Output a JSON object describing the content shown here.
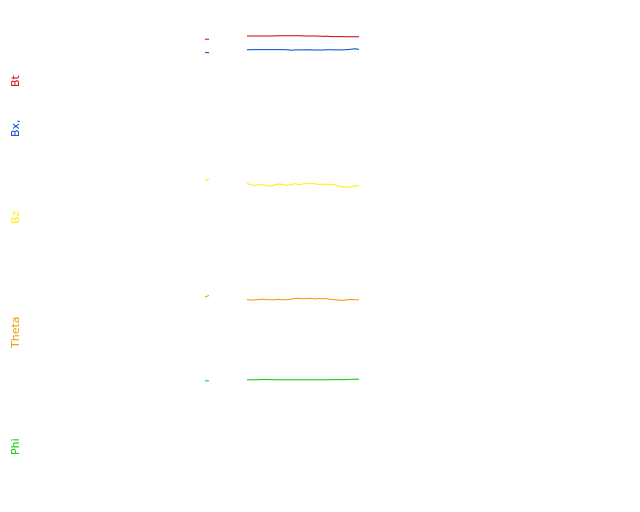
{
  "colors": {
    "bt": "#cc0000",
    "bx": "#0044cc",
    "bz": "#ffee00",
    "theta": "#ee9900",
    "phi": "#00cc00"
  },
  "labels": {
    "bt": "Bt",
    "bx": "Bx,",
    "bz": "Bz",
    "theta": "Theta",
    "phi": "Phi"
  },
  "chart_data": {
    "type": "line",
    "title": "",
    "xlabel": "",
    "axes_shown": false,
    "grid": false,
    "x": [
      0,
      2,
      4,
      6,
      8,
      10,
      12,
      14,
      16,
      18,
      20,
      22,
      24,
      26,
      28,
      30,
      32,
      34,
      36,
      38,
      40,
      42,
      44,
      46,
      48,
      50,
      52,
      54,
      56
    ],
    "series": [
      {
        "key": "bt",
        "values": [
          4,
          4,
          4,
          4,
          4,
          4,
          4,
          4.1,
          4.2,
          4.2,
          4.2,
          4.2,
          4.2,
          4.2,
          4.1,
          4,
          4,
          4,
          3.9,
          3.6,
          3.9,
          3.4,
          3.4,
          3.4,
          3.4,
          3.3,
          3.3,
          3.3,
          3.3
        ],
        "isolated": 0.8
      },
      {
        "key": "bx",
        "values": [
          3.2,
          3.3,
          3.4,
          3.4,
          3.4,
          3.4,
          3.4,
          3.4,
          3.4,
          3.4,
          3.2,
          2.8,
          3.1,
          3.1,
          3.1,
          3.2,
          3.1,
          3,
          3,
          3,
          3.2,
          3.2,
          3.1,
          3.1,
          3.1,
          3.4,
          3.8,
          4.2,
          3.6
        ],
        "isolated": 0.4
      },
      {
        "key": "bz",
        "values": [
          4.2,
          3.2,
          2.9,
          3.4,
          3.2,
          2.8,
          2.4,
          3.4,
          3.8,
          3.5,
          3.0,
          3.2,
          4.0,
          3.4,
          3.8,
          4.2,
          4.2,
          3.8,
          3.5,
          3.7,
          3.6,
          3.6,
          3.2,
          2.4,
          2.0,
          1.6,
          2.0,
          2.5,
          2.8
        ],
        "isolated": 6
      },
      {
        "key": "theta",
        "values": [
          3.2,
          2.8,
          2.9,
          3.2,
          3.4,
          3.1,
          3.0,
          3.1,
          3.3,
          3.1,
          3.1,
          3.5,
          3.9,
          4.0,
          3.8,
          3.9,
          4.0,
          3.6,
          3.9,
          3.7,
          3.7,
          3.3,
          3.0,
          2.8,
          2.6,
          3.0,
          3.2,
          3.1,
          3.1
        ],
        "isolated": 5
      },
      {
        "key": "phi",
        "values": [
          3.2,
          3.2,
          3.2,
          3.3,
          3.5,
          3.5,
          3.4,
          3.3,
          3.3,
          3.3,
          3.2,
          3.2,
          3.3,
          3.3,
          3.3,
          3.3,
          3.2,
          3.2,
          3.2,
          3.2,
          3.2,
          3.3,
          3.4,
          3.4,
          3.3,
          3.5,
          3.6,
          3.9,
          3.8
        ],
        "isolated": 2.2
      }
    ]
  }
}
